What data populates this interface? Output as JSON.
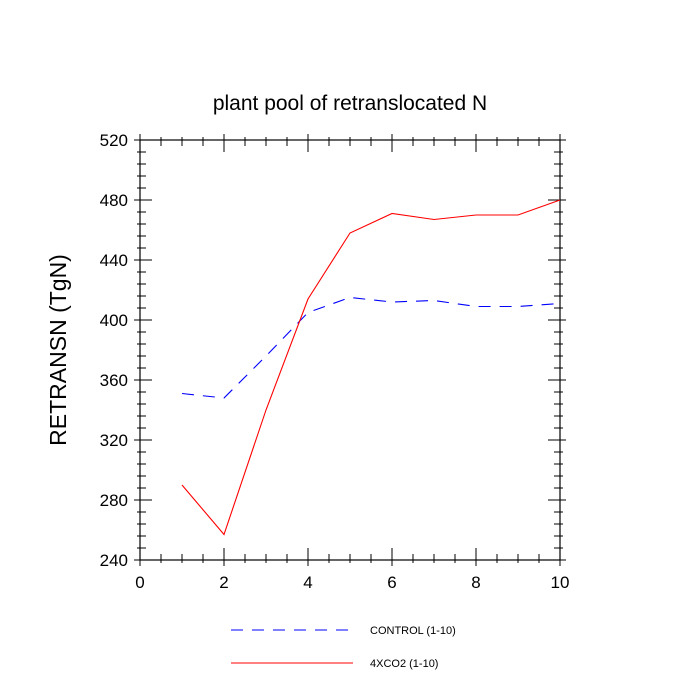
{
  "chart_data": {
    "type": "line",
    "title": "plant pool of retranslocated N",
    "xlabel": "",
    "ylabel": "RETRANSN  (TgN)",
    "xlim": [
      0,
      10
    ],
    "ylim": [
      240,
      520
    ],
    "x_ticks": [
      0,
      2,
      4,
      6,
      8,
      10
    ],
    "y_ticks": [
      240,
      280,
      320,
      360,
      400,
      440,
      480,
      520
    ],
    "grid": false,
    "legend_position": "bottom",
    "x": [
      1,
      2,
      3,
      4,
      5,
      6,
      7,
      8,
      9,
      10
    ],
    "series": [
      {
        "name": "CONTROL (1-10)",
        "color": "#0000ff",
        "dash": "dashed",
        "values": [
          351,
          348,
          376,
          405,
          415,
          412,
          413,
          409,
          409,
          411
        ]
      },
      {
        "name": "4XCO2 (1-10)",
        "color": "#ff0000",
        "dash": "solid",
        "values": [
          290,
          257,
          340,
          414,
          458,
          471,
          467,
          470,
          470,
          480
        ]
      }
    ]
  }
}
